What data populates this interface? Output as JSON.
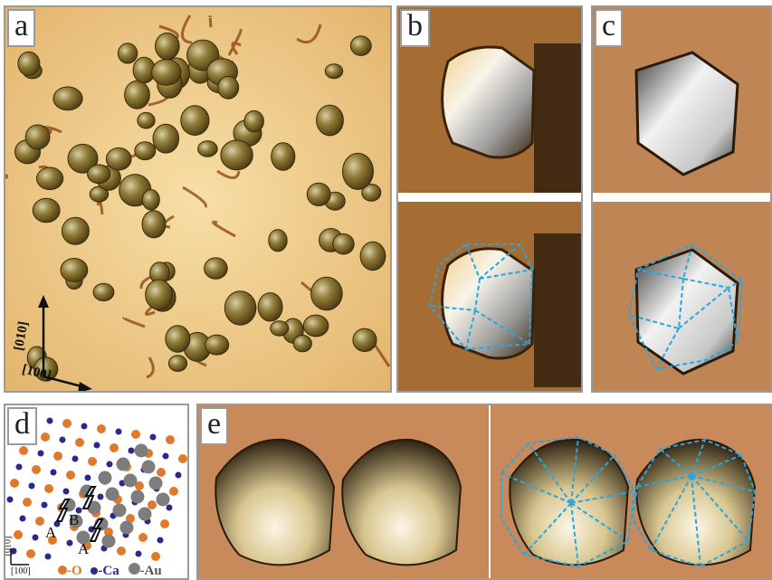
{
  "panels": {
    "a": {
      "label": "a",
      "axis_x": "[100]",
      "axis_y": "[010]"
    },
    "b": {
      "label": "b"
    },
    "c": {
      "label": "c"
    },
    "d": {
      "label": "d",
      "site_a1": "A",
      "site_b": "B",
      "site_a2": "A",
      "axis_x": "[100]",
      "axis_y": "[010]",
      "legend": {
        "o": "-O",
        "ca": "-Ca",
        "au": "-Au"
      }
    },
    "e": {
      "label": "e"
    }
  },
  "colors": {
    "surface_light": "#f2cf8f",
    "surface_dark": "#8a3f0f",
    "particle_dark": "#6e5a24",
    "particle_light": "#e9e3cf",
    "outline_dashed": "#2aa6dc",
    "oxygen": "#e07a2a",
    "calcium": "#2a2a8a",
    "gold": "#7d7d7d"
  }
}
